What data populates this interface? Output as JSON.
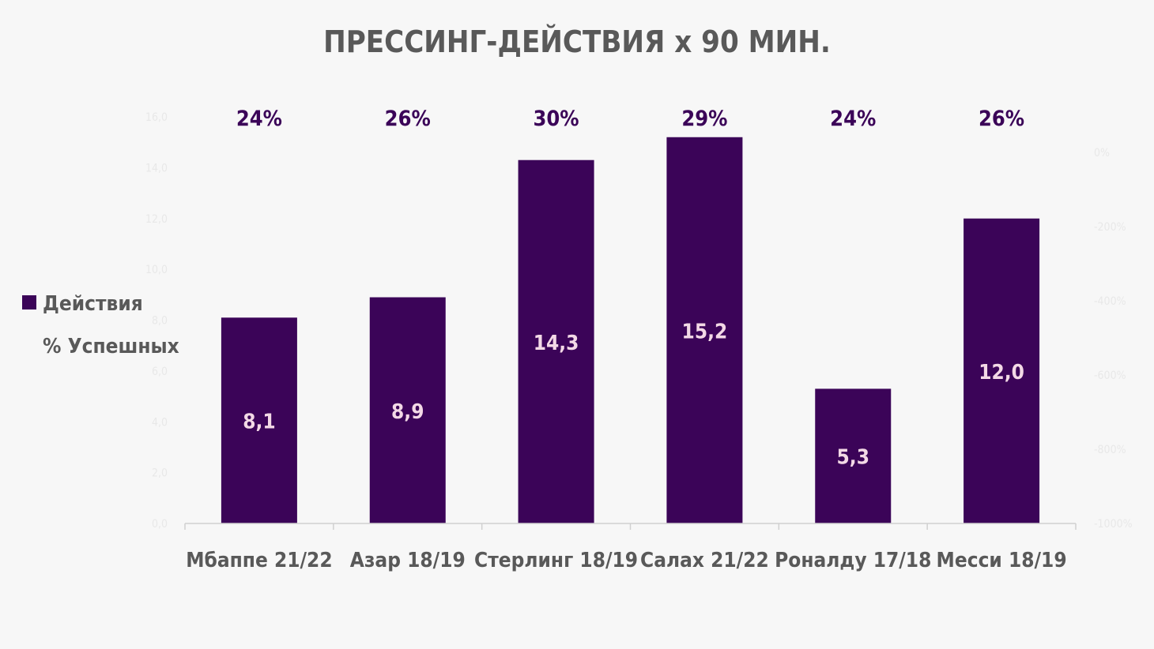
{
  "chart_data": {
    "type": "bar",
    "title": "ПРЕССИНГ-ДЕЙСТВИЯ х 90 МИН.",
    "categories": [
      "Мбаппе 21/22",
      "Азар 18/19",
      "Стерлинг 18/19",
      "Салах 21/22",
      "Роналду 17/18",
      "Месси 18/19"
    ],
    "series": [
      {
        "name": "Действия",
        "values": [
          8.1,
          8.9,
          14.3,
          15.2,
          5.3,
          12.0
        ],
        "labels": [
          "8,1",
          "8,9",
          "14,3",
          "15,2",
          "5,3",
          "12,0"
        ],
        "color": "#3b0458"
      },
      {
        "name": "% Успешных",
        "values": [
          24,
          26,
          30,
          29,
          24,
          26
        ],
        "labels": [
          "24%",
          "26%",
          "30%",
          "29%",
          "24%",
          "26%"
        ],
        "color": "#3b0458"
      }
    ],
    "ylim": [
      0,
      16
    ],
    "y_ticks": [
      "0,0",
      "2,0",
      "4,0",
      "6,0",
      "8,0",
      "10,0",
      "12,0",
      "14,0",
      "16,0"
    ],
    "y2_ticks": [
      "0%",
      "-200%",
      "-400%",
      "-600%",
      "-800%",
      "-1000%"
    ],
    "legend_position": "left",
    "xlabel": "",
    "ylabel": ""
  }
}
